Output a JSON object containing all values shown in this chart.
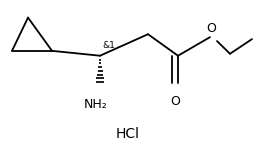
{
  "figsize": [
    2.57,
    1.44
  ],
  "dpi": 100,
  "bg_color": "#ffffff",
  "line_color": "#000000",
  "line_width": 1.3,
  "text_color": "#000000",
  "hcl_text": "HCl",
  "hcl_fontsize": 10,
  "stereo_label": "&1",
  "stereo_fontsize": 6.5,
  "nh2_label": "NH₂",
  "nh2_fontsize": 9,
  "o_label": "O",
  "o_fontsize": 9
}
